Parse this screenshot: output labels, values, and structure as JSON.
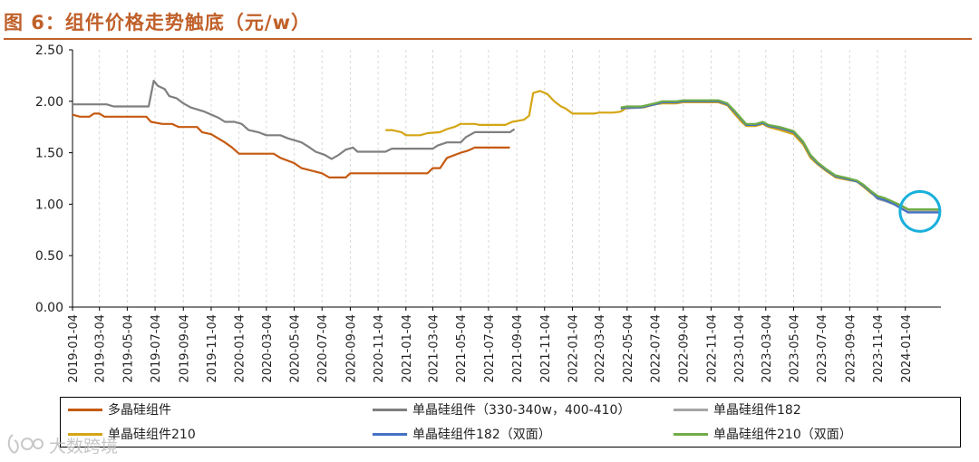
{
  "header": {
    "title": "图 6：组件价格走势触底（元/w）"
  },
  "watermark": {
    "text": "大数跨境"
  },
  "colors": {
    "title": "#c0602a",
    "highlight_circle": "#1ab0dc"
  },
  "chart_data": {
    "type": "line",
    "title": "图 6：组件价格走势触底（元/w）",
    "xlabel": "",
    "ylabel": "",
    "ylim": [
      0,
      2.5
    ],
    "yticks": [
      0.0,
      0.5,
      1.0,
      1.5,
      2.0,
      2.5
    ],
    "ytick_labels": [
      "0.00",
      "0.50",
      "1.00",
      "1.50",
      "2.00",
      "2.50"
    ],
    "xlim": [
      "2019-01-04",
      "2024-03-22"
    ],
    "xtick_labels": [
      "2019-01-04",
      "2019-03-04",
      "2019-05-04",
      "2019-07-04",
      "2019-09-04",
      "2019-11-04",
      "2020-01-04",
      "2020-03-04",
      "2020-05-04",
      "2020-07-04",
      "2020-09-04",
      "2020-11-04",
      "2021-01-04",
      "2021-03-04",
      "2021-05-04",
      "2021-07-04",
      "2021-09-04",
      "2021-11-04",
      "2022-01-04",
      "2022-03-04",
      "2022-05-04",
      "2022-07-04",
      "2022-09-04",
      "2022-11-04",
      "2023-01-04",
      "2023-03-04",
      "2023-05-04",
      "2023-07-04",
      "2023-09-04",
      "2023-11-04",
      "2024-01-04"
    ],
    "grid": "vertical-dashed",
    "legend_position": "bottom",
    "annotation": "circle highlighting latest values around 2024-01",
    "series": [
      {
        "name": "多晶硅组件",
        "color": "#c55a11",
        "points": [
          [
            "2019-01-04",
            1.87
          ],
          [
            "2019-01-20",
            1.85
          ],
          [
            "2019-02-10",
            1.85
          ],
          [
            "2019-02-20",
            1.88
          ],
          [
            "2019-03-04",
            1.88
          ],
          [
            "2019-03-15",
            1.85
          ],
          [
            "2019-06-15",
            1.85
          ],
          [
            "2019-06-25",
            1.8
          ],
          [
            "2019-07-20",
            1.78
          ],
          [
            "2019-08-10",
            1.78
          ],
          [
            "2019-08-25",
            1.75
          ],
          [
            "2019-10-04",
            1.75
          ],
          [
            "2019-10-15",
            1.7
          ],
          [
            "2019-11-04",
            1.68
          ],
          [
            "2019-12-04",
            1.6
          ],
          [
            "2019-12-20",
            1.55
          ],
          [
            "2020-01-04",
            1.49
          ],
          [
            "2020-03-20",
            1.49
          ],
          [
            "2020-04-04",
            1.45
          ],
          [
            "2020-05-04",
            1.4
          ],
          [
            "2020-05-20",
            1.35
          ],
          [
            "2020-07-04",
            1.3
          ],
          [
            "2020-07-20",
            1.26
          ],
          [
            "2020-08-25",
            1.26
          ],
          [
            "2020-09-04",
            1.3
          ],
          [
            "2021-02-20",
            1.3
          ],
          [
            "2021-03-04",
            1.35
          ],
          [
            "2021-03-20",
            1.35
          ],
          [
            "2021-04-04",
            1.45
          ],
          [
            "2021-05-04",
            1.5
          ],
          [
            "2021-05-20",
            1.52
          ],
          [
            "2021-06-04",
            1.55
          ],
          [
            "2021-08-20",
            1.55
          ]
        ]
      },
      {
        "name": "单晶硅组件（330-340w，400-410）",
        "color": "#7f7f7f",
        "points": [
          [
            "2019-01-04",
            1.97
          ],
          [
            "2019-03-20",
            1.97
          ],
          [
            "2019-04-04",
            1.95
          ],
          [
            "2019-06-20",
            1.95
          ],
          [
            "2019-07-01",
            2.2
          ],
          [
            "2019-07-10",
            2.15
          ],
          [
            "2019-07-25",
            2.12
          ],
          [
            "2019-08-04",
            2.05
          ],
          [
            "2019-08-20",
            2.03
          ],
          [
            "2019-09-04",
            1.98
          ],
          [
            "2019-09-20",
            1.94
          ],
          [
            "2019-10-20",
            1.9
          ],
          [
            "2019-11-20",
            1.84
          ],
          [
            "2019-12-04",
            1.8
          ],
          [
            "2019-12-25",
            1.8
          ],
          [
            "2020-01-10",
            1.78
          ],
          [
            "2020-01-25",
            1.72
          ],
          [
            "2020-02-15",
            1.7
          ],
          [
            "2020-03-04",
            1.67
          ],
          [
            "2020-04-04",
            1.67
          ],
          [
            "2020-04-20",
            1.64
          ],
          [
            "2020-05-20",
            1.6
          ],
          [
            "2020-06-04",
            1.56
          ],
          [
            "2020-06-20",
            1.51
          ],
          [
            "2020-07-10",
            1.48
          ],
          [
            "2020-07-25",
            1.44
          ],
          [
            "2020-08-10",
            1.48
          ],
          [
            "2020-08-25",
            1.53
          ],
          [
            "2020-09-10",
            1.55
          ],
          [
            "2020-09-20",
            1.51
          ],
          [
            "2020-11-20",
            1.51
          ],
          [
            "2020-12-04",
            1.54
          ],
          [
            "2021-03-04",
            1.54
          ],
          [
            "2021-03-15",
            1.57
          ],
          [
            "2021-04-04",
            1.6
          ],
          [
            "2021-05-04",
            1.6
          ],
          [
            "2021-05-15",
            1.65
          ],
          [
            "2021-06-04",
            1.7
          ],
          [
            "2021-08-20",
            1.7
          ],
          [
            "2021-08-30",
            1.73
          ]
        ]
      },
      {
        "name": "单晶硅组件182",
        "color": "#a6a6a6",
        "points": [
          [
            "2022-04-20",
            1.93
          ],
          [
            "2022-05-04",
            1.93
          ],
          [
            "2022-06-04",
            1.94
          ],
          [
            "2022-07-04",
            1.97
          ],
          [
            "2022-07-20",
            1.99
          ],
          [
            "2022-08-20",
            1.99
          ],
          [
            "2022-09-04",
            2.0
          ],
          [
            "2022-11-20",
            2.0
          ],
          [
            "2022-12-10",
            1.97
          ],
          [
            "2022-12-25",
            1.9
          ],
          [
            "2023-01-10",
            1.82
          ],
          [
            "2023-01-20",
            1.77
          ],
          [
            "2023-02-10",
            1.77
          ],
          [
            "2023-02-25",
            1.79
          ],
          [
            "2023-03-10",
            1.76
          ],
          [
            "2023-04-04",
            1.74
          ],
          [
            "2023-05-04",
            1.7
          ],
          [
            "2023-05-25",
            1.6
          ],
          [
            "2023-06-10",
            1.46
          ],
          [
            "2023-06-25",
            1.4
          ],
          [
            "2023-07-15",
            1.33
          ],
          [
            "2023-08-04",
            1.27
          ],
          [
            "2023-08-25",
            1.25
          ],
          [
            "2023-09-20",
            1.22
          ],
          [
            "2023-10-04",
            1.18
          ],
          [
            "2023-10-20",
            1.12
          ],
          [
            "2023-11-04",
            1.05
          ],
          [
            "2023-11-20",
            1.03
          ],
          [
            "2023-12-10",
            1.0
          ],
          [
            "2023-12-25",
            0.97
          ],
          [
            "2024-01-10",
            0.93
          ],
          [
            "2024-03-22",
            0.93
          ]
        ]
      },
      {
        "name": "单晶硅组件210",
        "color": "#d4a514",
        "points": [
          [
            "2020-11-20",
            1.72
          ],
          [
            "2020-12-04",
            1.72
          ],
          [
            "2020-12-25",
            1.7
          ],
          [
            "2021-01-04",
            1.67
          ],
          [
            "2021-02-04",
            1.67
          ],
          [
            "2021-02-20",
            1.69
          ],
          [
            "2021-03-20",
            1.7
          ],
          [
            "2021-04-04",
            1.73
          ],
          [
            "2021-04-20",
            1.75
          ],
          [
            "2021-05-04",
            1.78
          ],
          [
            "2021-06-04",
            1.78
          ],
          [
            "2021-06-15",
            1.77
          ],
          [
            "2021-08-10",
            1.77
          ],
          [
            "2021-08-25",
            1.8
          ],
          [
            "2021-09-20",
            1.82
          ],
          [
            "2021-10-01",
            1.86
          ],
          [
            "2021-10-10",
            2.08
          ],
          [
            "2021-10-25",
            2.1
          ],
          [
            "2021-11-10",
            2.07
          ],
          [
            "2021-11-25",
            2.0
          ],
          [
            "2021-12-10",
            1.95
          ],
          [
            "2021-12-20",
            1.93
          ],
          [
            "2022-01-04",
            1.88
          ],
          [
            "2022-02-20",
            1.88
          ],
          [
            "2022-03-04",
            1.89
          ],
          [
            "2022-04-04",
            1.89
          ],
          [
            "2022-04-20",
            1.9
          ],
          [
            "2022-05-04",
            1.94
          ],
          [
            "2022-06-10",
            1.94
          ],
          [
            "2022-07-04",
            1.97
          ],
          [
            "2022-07-20",
            1.98
          ],
          [
            "2022-08-20",
            1.98
          ],
          [
            "2022-09-04",
            1.99
          ],
          [
            "2022-11-20",
            1.99
          ],
          [
            "2022-12-10",
            1.96
          ],
          [
            "2022-12-25",
            1.88
          ],
          [
            "2023-01-10",
            1.8
          ],
          [
            "2023-01-20",
            1.76
          ],
          [
            "2023-02-10",
            1.76
          ],
          [
            "2023-02-25",
            1.78
          ],
          [
            "2023-03-10",
            1.75
          ],
          [
            "2023-04-04",
            1.72
          ],
          [
            "2023-05-04",
            1.68
          ],
          [
            "2023-05-25",
            1.58
          ],
          [
            "2023-06-10",
            1.45
          ],
          [
            "2023-06-25",
            1.39
          ],
          [
            "2023-07-15",
            1.32
          ],
          [
            "2023-08-04",
            1.26
          ],
          [
            "2023-08-25",
            1.24
          ],
          [
            "2023-09-20",
            1.22
          ],
          [
            "2023-10-04",
            1.17
          ],
          [
            "2023-10-20",
            1.11
          ],
          [
            "2023-11-04",
            1.07
          ],
          [
            "2023-11-20",
            1.05
          ],
          [
            "2023-12-10",
            1.01
          ],
          [
            "2023-12-25",
            0.99
          ],
          [
            "2024-01-10",
            0.95
          ],
          [
            "2024-03-22",
            0.95
          ]
        ]
      },
      {
        "name": "单晶硅组件182（双面）",
        "color": "#4472c4",
        "points": [
          [
            "2022-04-20",
            1.93
          ],
          [
            "2022-05-04",
            1.94
          ],
          [
            "2022-06-04",
            1.94
          ],
          [
            "2022-07-04",
            1.97
          ],
          [
            "2022-07-20",
            1.99
          ],
          [
            "2022-08-20",
            1.99
          ],
          [
            "2022-09-04",
            2.0
          ],
          [
            "2022-11-20",
            2.0
          ],
          [
            "2022-12-10",
            1.97
          ],
          [
            "2022-12-25",
            1.9
          ],
          [
            "2023-01-10",
            1.82
          ],
          [
            "2023-01-20",
            1.77
          ],
          [
            "2023-02-10",
            1.77
          ],
          [
            "2023-02-25",
            1.79
          ],
          [
            "2023-03-10",
            1.76
          ],
          [
            "2023-04-04",
            1.74
          ],
          [
            "2023-05-04",
            1.7
          ],
          [
            "2023-05-25",
            1.6
          ],
          [
            "2023-06-10",
            1.47
          ],
          [
            "2023-06-25",
            1.4
          ],
          [
            "2023-07-15",
            1.33
          ],
          [
            "2023-08-04",
            1.27
          ],
          [
            "2023-08-25",
            1.25
          ],
          [
            "2023-09-20",
            1.22
          ],
          [
            "2023-10-04",
            1.18
          ],
          [
            "2023-10-20",
            1.12
          ],
          [
            "2023-11-04",
            1.06
          ],
          [
            "2023-11-20",
            1.04
          ],
          [
            "2023-12-10",
            1.0
          ],
          [
            "2023-12-25",
            0.96
          ],
          [
            "2024-01-10",
            0.92
          ],
          [
            "2024-03-22",
            0.92
          ]
        ]
      },
      {
        "name": "单晶硅组件210（双面）",
        "color": "#70ad47",
        "points": [
          [
            "2022-04-20",
            1.94
          ],
          [
            "2022-05-04",
            1.95
          ],
          [
            "2022-06-04",
            1.95
          ],
          [
            "2022-07-04",
            1.98
          ],
          [
            "2022-07-20",
            2.0
          ],
          [
            "2022-08-20",
            2.0
          ],
          [
            "2022-09-04",
            2.01
          ],
          [
            "2022-11-20",
            2.01
          ],
          [
            "2022-12-10",
            1.98
          ],
          [
            "2022-12-25",
            1.91
          ],
          [
            "2023-01-10",
            1.83
          ],
          [
            "2023-01-20",
            1.78
          ],
          [
            "2023-02-10",
            1.78
          ],
          [
            "2023-02-25",
            1.8
          ],
          [
            "2023-03-10",
            1.77
          ],
          [
            "2023-04-04",
            1.75
          ],
          [
            "2023-05-04",
            1.71
          ],
          [
            "2023-05-25",
            1.61
          ],
          [
            "2023-06-10",
            1.48
          ],
          [
            "2023-06-25",
            1.41
          ],
          [
            "2023-07-15",
            1.34
          ],
          [
            "2023-08-04",
            1.28
          ],
          [
            "2023-08-25",
            1.26
          ],
          [
            "2023-09-20",
            1.23
          ],
          [
            "2023-10-04",
            1.19
          ],
          [
            "2023-10-20",
            1.13
          ],
          [
            "2023-11-04",
            1.08
          ],
          [
            "2023-11-20",
            1.06
          ],
          [
            "2023-12-10",
            1.02
          ],
          [
            "2023-12-25",
            0.99
          ],
          [
            "2024-01-10",
            0.95
          ],
          [
            "2024-03-22",
            0.95
          ]
        ]
      }
    ]
  }
}
